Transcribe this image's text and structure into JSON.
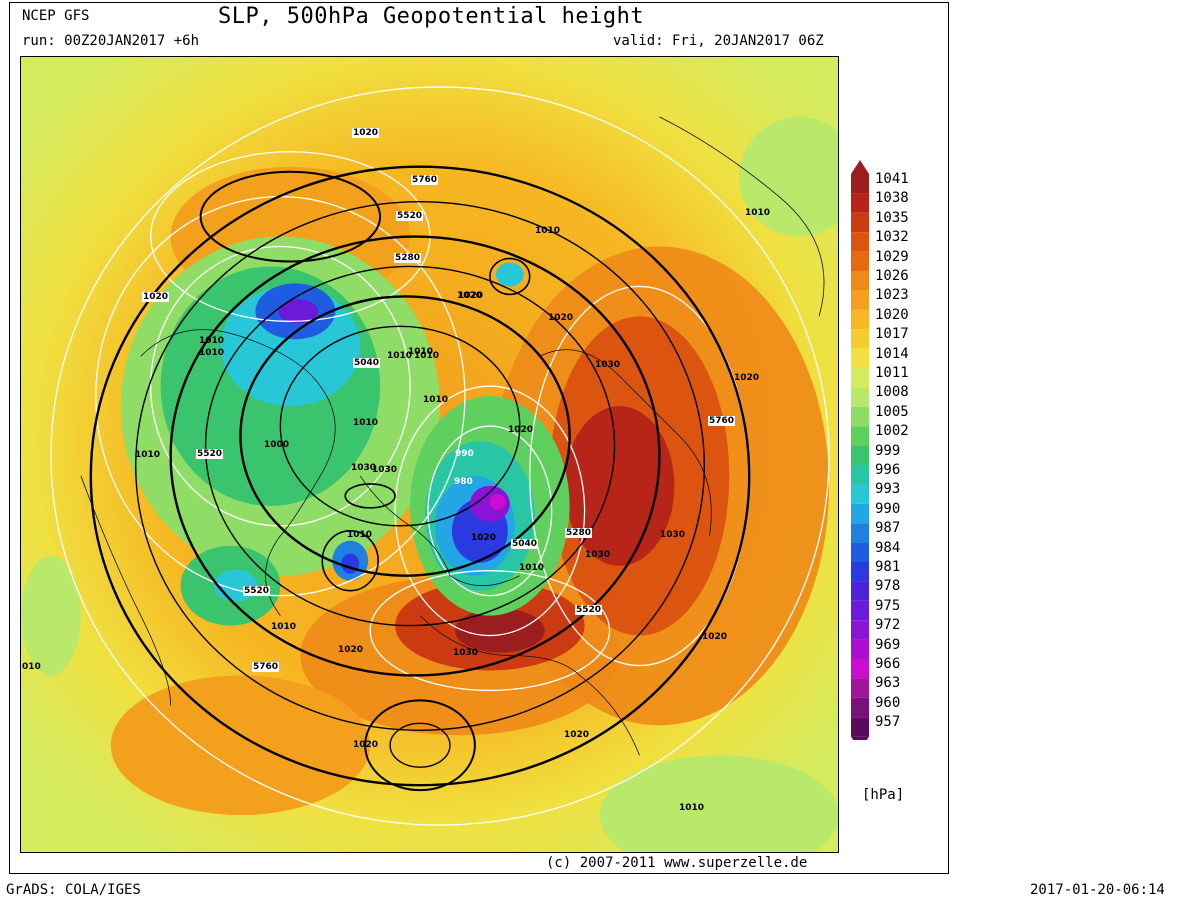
{
  "header": {
    "model": "NCEP GFS",
    "title": "SLP, 500hPa Geopotential height",
    "run": "run: 00Z20JAN2017 +6h",
    "valid": "valid: Fri, 20JAN2017 06Z"
  },
  "footer": {
    "credit": "(c) 2007-2011 www.superzelle.de",
    "grads": "GrADS: COLA/IGES",
    "timestamp": "2017-01-20-06:14"
  },
  "legend": {
    "unit": "[hPa]",
    "labels": [
      "1041",
      "1038",
      "1035",
      "1032",
      "1029",
      "1026",
      "1023",
      "1020",
      "1017",
      "1014",
      "1011",
      "1008",
      "1005",
      "1002",
      "999",
      "996",
      "993",
      "990",
      "987",
      "984",
      "981",
      "978",
      "975",
      "972",
      "969",
      "966",
      "963",
      "960",
      "957"
    ],
    "colors": [
      "#9b1d1d",
      "#b72418",
      "#cc3a12",
      "#dc5510",
      "#e66a12",
      "#ee8a18",
      "#f3a01c",
      "#f6b722",
      "#f5cc2a",
      "#f0e040",
      "#d6eb5e",
      "#b9e86a",
      "#8fdd66",
      "#5fcf5e",
      "#3bc46e",
      "#29c6a6",
      "#27c7d8",
      "#22a6e4",
      "#1f80df",
      "#1e5de0",
      "#2a3ae0",
      "#4a22dc",
      "#6a1ad8",
      "#8a14d4",
      "#aa0fd0",
      "#cc0cd0",
      "#a0149c",
      "#7a107a",
      "#5a0a5a"
    ]
  },
  "map_labels": {
    "isobars": [
      "1020",
      "1010",
      "1020",
      "1010",
      "1010",
      "1010",
      "1020",
      "1010",
      "1020",
      "1020",
      "1030",
      "1020",
      "1010",
      "1000",
      "1010",
      "1030",
      "1010",
      "1020",
      "1010",
      "1010",
      "1010",
      "1020",
      "1020",
      "1030",
      "1030",
      "1010",
      "1030",
      "1020",
      "1020",
      "1010",
      "1020",
      "1010",
      "010",
      "1030"
    ],
    "heights": [
      "5760",
      "5520",
      "5280",
      "5040",
      "5520",
      "5280",
      "5040",
      "5760",
      "5520",
      "5520",
      "5760"
    ],
    "lows": [
      "980",
      "990"
    ]
  },
  "colors": {
    "contour_black": "#000000",
    "contour_white": "#ffffff",
    "coastline": "#111111"
  }
}
